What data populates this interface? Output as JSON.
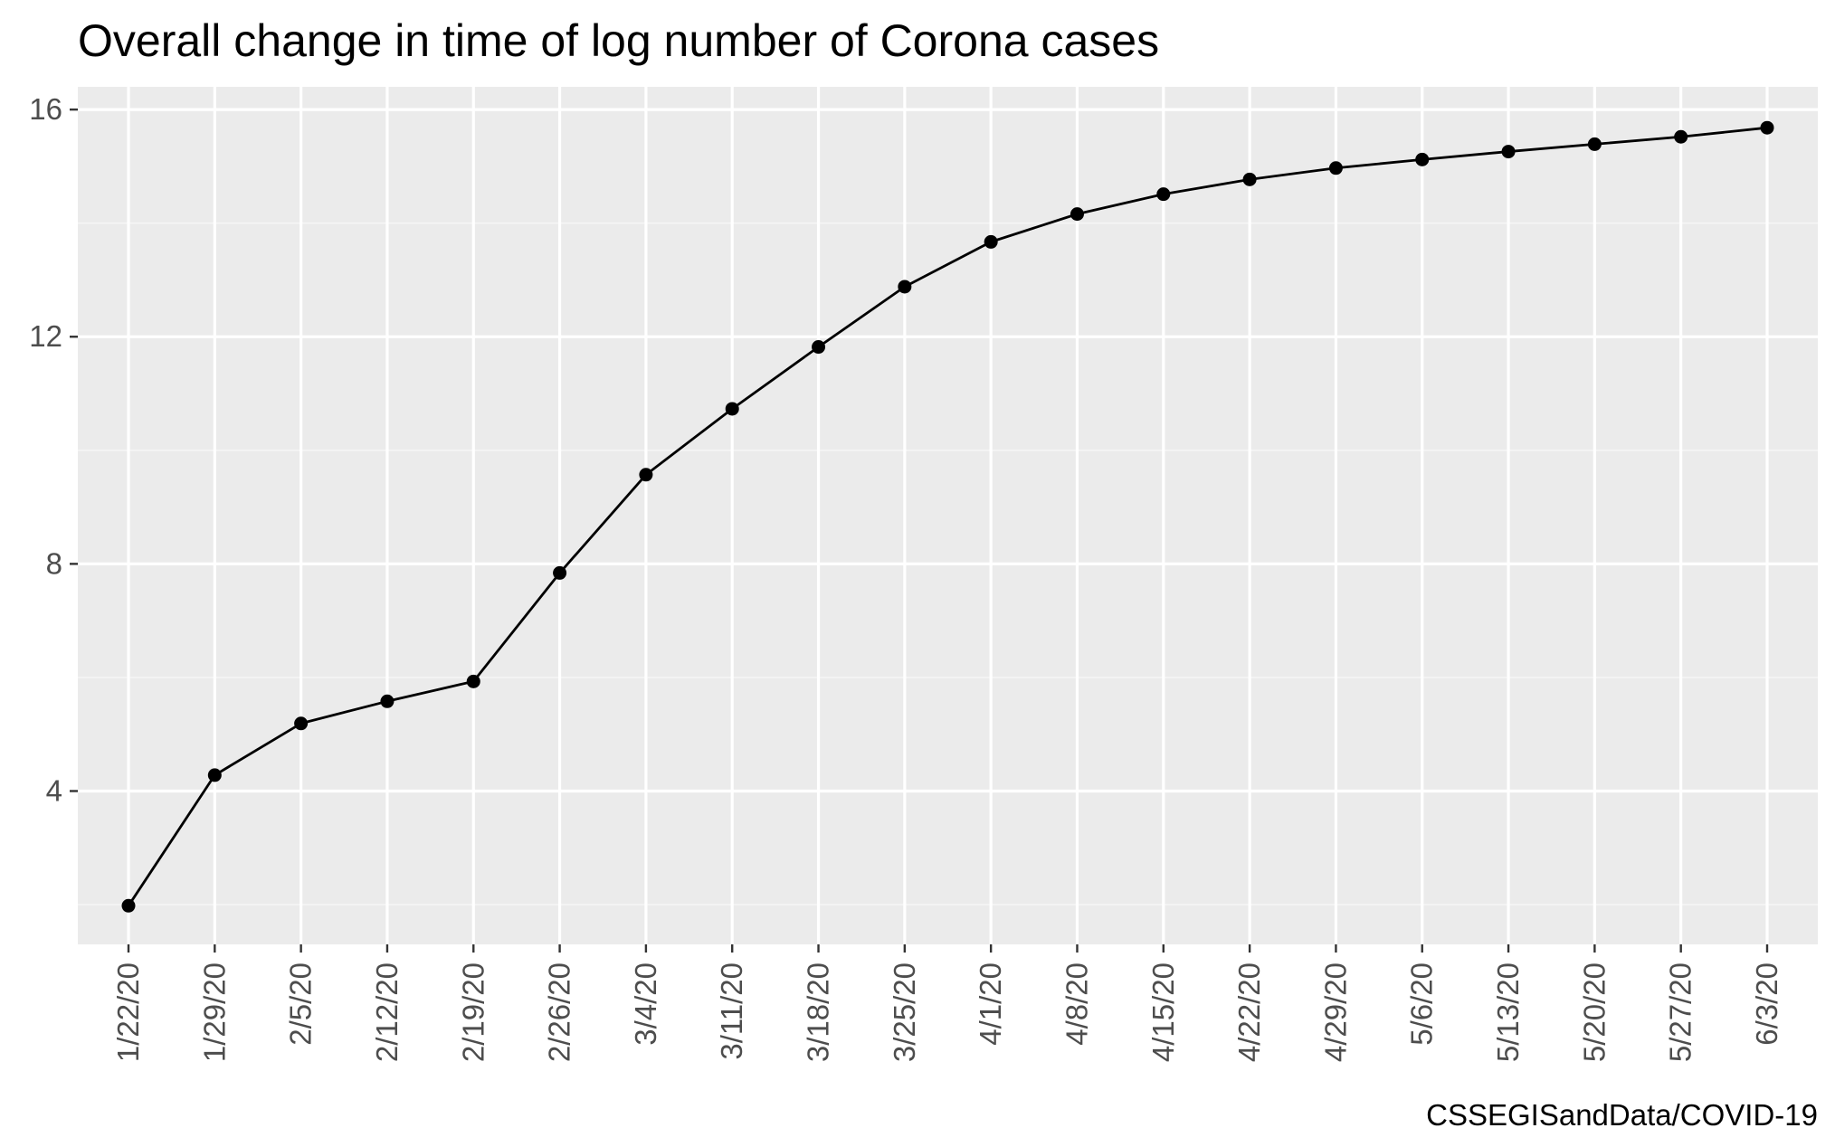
{
  "chart_data": {
    "type": "line",
    "title": "Overall change in time of log number of Corona cases",
    "caption": "CSSEGISandData/COVID-19",
    "xlabel": "",
    "ylabel": "",
    "categories": [
      "1/22/20",
      "1/29/20",
      "2/5/20",
      "2/12/20",
      "2/19/20",
      "2/26/20",
      "3/4/20",
      "3/11/20",
      "3/18/20",
      "3/25/20",
      "4/1/20",
      "4/8/20",
      "4/15/20",
      "4/22/20",
      "4/29/20",
      "5/6/20",
      "5/13/20",
      "5/20/20",
      "5/27/20",
      "6/3/20"
    ],
    "series": [
      {
        "values": [
          1.98,
          4.28,
          5.19,
          5.58,
          5.93,
          7.84,
          9.57,
          10.73,
          11.82,
          12.88,
          13.67,
          14.16,
          14.51,
          14.77,
          14.97,
          15.12,
          15.26,
          15.39,
          15.52,
          15.68
        ]
      }
    ],
    "ylim": [
      1.3,
      16.4
    ],
    "yticks": [
      4,
      8,
      12,
      16
    ],
    "ytick_labels": [
      "4",
      "8",
      "12",
      "16"
    ],
    "grid": true,
    "legend": "none",
    "colors": {
      "panel_background": "#EBEBEB",
      "grid_major": "#FFFFFF",
      "grid_minor": "#F5F5F5",
      "line": "#000000",
      "point": "#000000",
      "tick_label": "#4D4D4D",
      "axis_tick": "#333333"
    }
  }
}
